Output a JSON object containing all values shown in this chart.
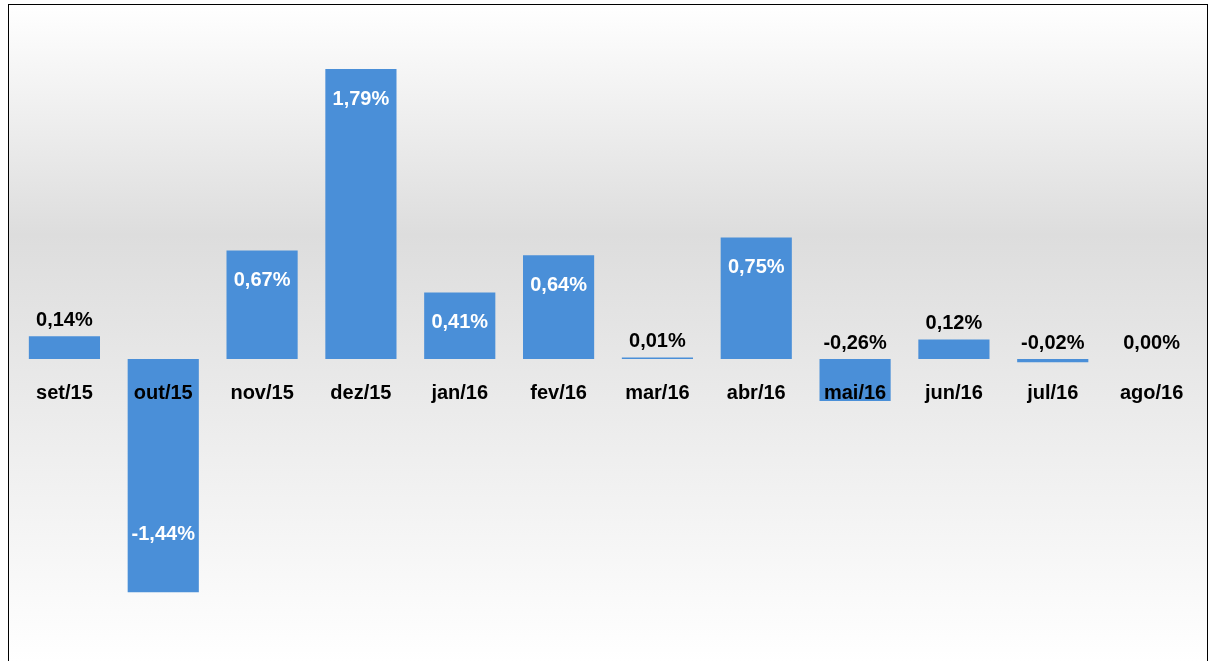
{
  "chart_data": {
    "type": "bar",
    "categories": [
      "set/15",
      "out/15",
      "nov/15",
      "dez/15",
      "jan/16",
      "fev/16",
      "mar/16",
      "abr/16",
      "mai/16",
      "jun/16",
      "jul/16",
      "ago/16"
    ],
    "values": [
      0.14,
      -1.44,
      0.67,
      1.79,
      0.41,
      0.64,
      0.01,
      0.75,
      -0.26,
      0.12,
      -0.02,
      0.0
    ],
    "value_labels": [
      "0,14%",
      "-1,44%",
      "0,67%",
      "1,79%",
      "0,41%",
      "0,64%",
      "0,01%",
      "0,75%",
      "-0,26%",
      "0,12%",
      "-0,02%",
      "0,00%"
    ],
    "color": "#4a8fd8"
  }
}
